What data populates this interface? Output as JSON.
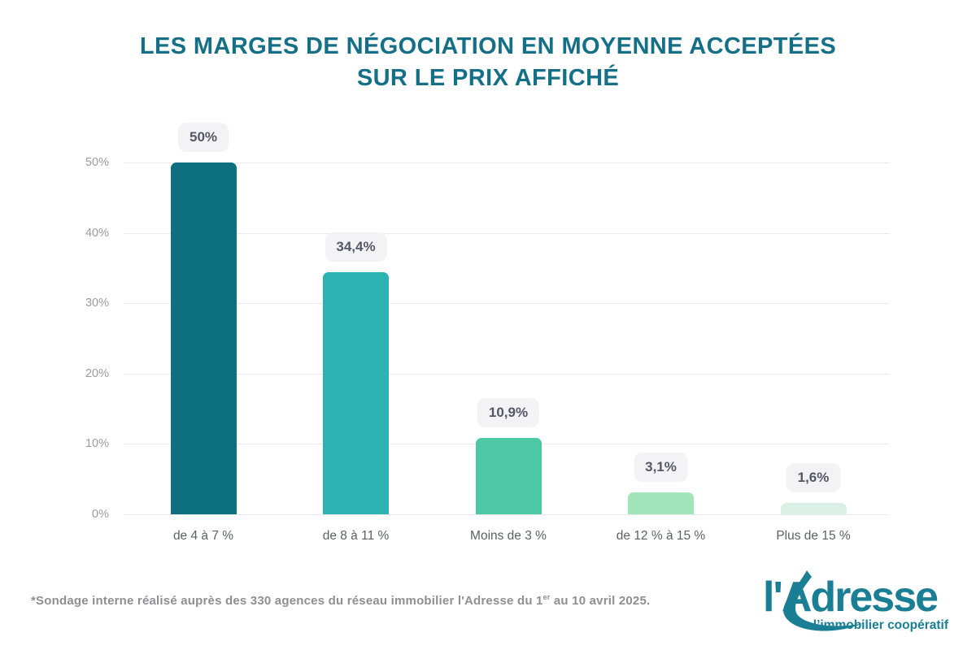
{
  "title": {
    "line1": "LES MARGES DE NÉGOCIATION EN MOYENNE ACCEPTÉES",
    "line2": "SUR LE PRIX AFFICHÉ",
    "color": "#156f87"
  },
  "chart_data": {
    "type": "bar",
    "title": "LES MARGES DE NÉGOCIATION EN MOYENNE ACCEPTÉES SUR LE PRIX AFFICHÉ",
    "categories": [
      "de 4 à 7 %",
      "de 8 à 11 %",
      "Moins de 3 %",
      "de 12 % à 15 %",
      "Plus de 15 %"
    ],
    "values": [
      50,
      34.4,
      10.9,
      3.1,
      1.6
    ],
    "value_labels": [
      "50%",
      "34,4%",
      "10,9%",
      "3,1%",
      "1,6%"
    ],
    "bar_colors": [
      "#0e6f80",
      "#2bb3b3",
      "#4cc8a4",
      "#a3e5bb",
      "#daf0e4"
    ],
    "xlabel": "",
    "ylabel": "",
    "ylim": [
      0,
      50
    ],
    "y_ticks": [
      "0%",
      "10%",
      "20%",
      "30%",
      "40%",
      "50%"
    ],
    "grid": true,
    "legend": false,
    "badge_bg": "#f3f3f5",
    "badge_text_color": "#565666"
  },
  "footer": {
    "note_before": "*Sondage interne réalisé auprès des 330 agences du réseau immobilier l'Adresse du 1",
    "note_sup": "er",
    "note_after": " au 10 avril 2025."
  },
  "logo": {
    "name": "l'Adresse",
    "tagline": "l’immobilier coopératif",
    "color": "#1a7e95"
  }
}
